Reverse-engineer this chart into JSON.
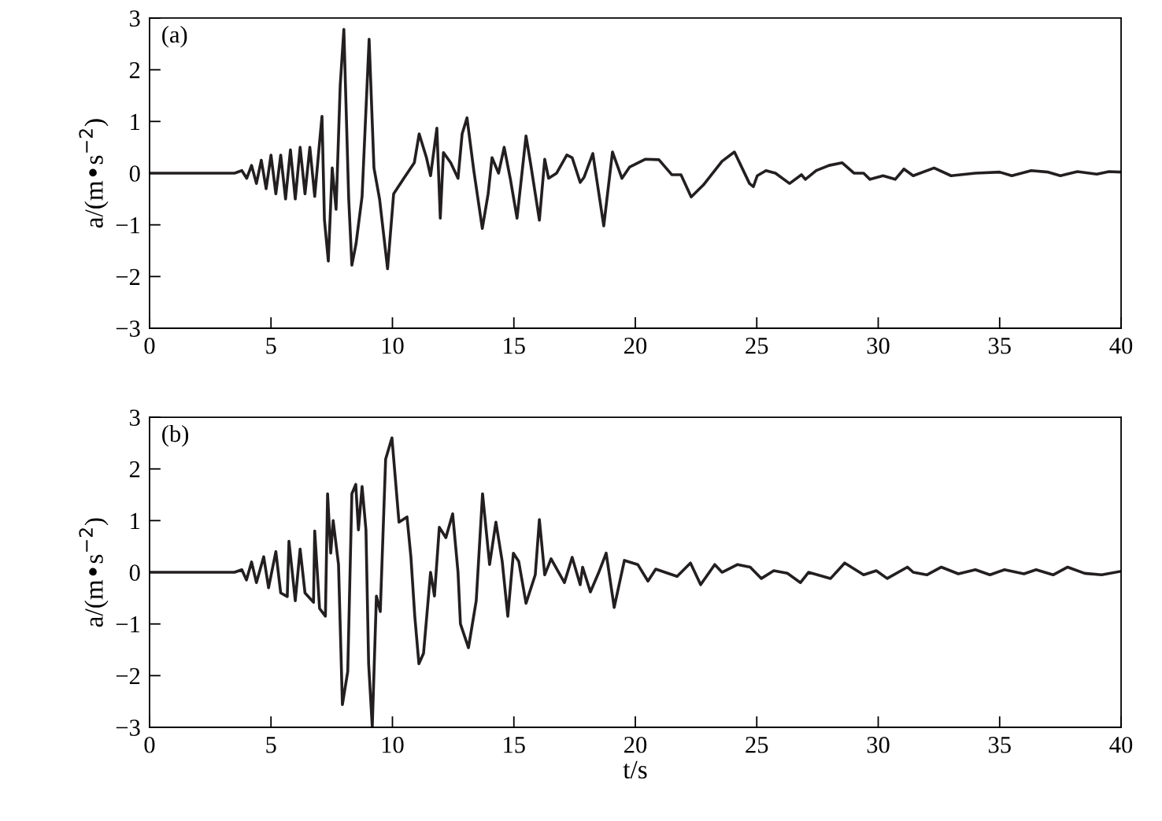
{
  "chart_data": [
    {
      "type": "line",
      "ylabel": "a/(m•s$^{−2}$)",
      "annotations": [
        "(a)"
      ],
      "xlim": [
        0,
        40
      ],
      "xticks": [
        0,
        5,
        10,
        15,
        20,
        25,
        30,
        35,
        40
      ],
      "ylim": [
        -3,
        3
      ],
      "yticks": [
        -3,
        -2,
        -1,
        0,
        1,
        2,
        3
      ],
      "grid": false,
      "marker": "none",
      "line_style": "solid",
      "series": [
        {
          "color": "#231f20",
          "x": [
            0,
            3.5,
            3.8,
            4.0,
            4.2,
            4.4,
            4.6,
            4.8,
            5.0,
            5.2,
            5.4,
            5.6,
            5.8,
            6.0,
            6.2,
            6.4,
            6.6,
            6.8,
            7.0,
            7.1,
            7.2,
            7.36,
            7.52,
            7.68,
            7.85,
            8.0,
            8.2,
            8.33,
            8.5,
            8.75,
            9.04,
            9.24,
            9.47,
            9.8,
            10.05,
            10.47,
            10.9,
            11.1,
            11.4,
            11.57,
            11.83,
            11.97,
            12.1,
            12.4,
            12.7,
            12.87,
            13.07,
            13.35,
            13.7,
            13.94,
            14.1,
            14.37,
            14.6,
            14.85,
            15.13,
            15.5,
            15.7,
            16.05,
            16.27,
            16.43,
            16.76,
            17.18,
            17.4,
            17.73,
            17.89,
            18.25,
            18.7,
            19.06,
            19.45,
            19.77,
            20.42,
            20.97,
            21.5,
            21.88,
            22.3,
            22.8,
            23.57,
            24.08,
            24.7,
            24.86,
            25.02,
            25.38,
            25.77,
            26.35,
            26.84,
            27.0,
            27.45,
            27.98,
            28.52,
            29.0,
            29.4,
            29.66,
            30.2,
            30.7,
            31.06,
            31.44,
            32.3,
            33.0,
            34.0,
            35.0,
            35.5,
            36.3,
            37.0,
            37.5,
            38.2,
            39.0,
            39.5,
            40.0
          ],
          "values": [
            0,
            0,
            0.05,
            -0.1,
            0.15,
            -0.2,
            0.25,
            -0.3,
            0.35,
            -0.4,
            0.35,
            -0.5,
            0.45,
            -0.5,
            0.5,
            -0.4,
            0.5,
            -0.45,
            0.6,
            1.1,
            -0.9,
            -1.7,
            0.1,
            -0.7,
            1.7,
            2.78,
            -0.5,
            -1.78,
            -1.37,
            -0.45,
            2.59,
            0.1,
            -0.5,
            -1.85,
            -0.4,
            -0.1,
            0.2,
            0.76,
            0.3,
            -0.05,
            0.87,
            -0.87,
            0.4,
            0.2,
            -0.1,
            0.76,
            1.07,
            0.05,
            -1.07,
            -0.4,
            0.3,
            0.0,
            0.5,
            -0.1,
            -0.87,
            0.72,
            0.15,
            -0.91,
            0.27,
            -0.1,
            0.0,
            0.35,
            0.3,
            -0.18,
            -0.08,
            0.38,
            -1.02,
            0.41,
            -0.1,
            0.12,
            0.27,
            0.26,
            -0.03,
            -0.03,
            -0.46,
            -0.23,
            0.23,
            0.41,
            -0.2,
            -0.26,
            -0.05,
            0.05,
            0.0,
            -0.2,
            -0.03,
            -0.12,
            0.05,
            0.15,
            0.2,
            0.0,
            0.0,
            -0.12,
            -0.05,
            -0.12,
            0.08,
            -0.05,
            0.1,
            -0.05,
            0.0,
            0.02,
            -0.05,
            0.05,
            0.02,
            -0.05,
            0.03,
            -0.02,
            0.03,
            0.02
          ]
        }
      ]
    },
    {
      "type": "line",
      "xlabel": "t/s",
      "ylabel": "a/(m•s$^{−2}$)",
      "annotations": [
        "(b)"
      ],
      "xlim": [
        0,
        40
      ],
      "xticks": [
        0,
        5,
        10,
        15,
        20,
        25,
        30,
        35,
        40
      ],
      "ylim": [
        -3,
        3
      ],
      "yticks": [
        -3,
        -2,
        -1,
        0,
        1,
        2,
        3
      ],
      "grid": false,
      "marker": "none",
      "line_style": "solid",
      "series": [
        {
          "color": "#231f20",
          "x": [
            0,
            3.5,
            3.8,
            3.99,
            4.2,
            4.4,
            4.7,
            4.9,
            5.2,
            5.4,
            5.67,
            5.74,
            6.0,
            6.2,
            6.4,
            6.75,
            6.8,
            7.0,
            7.24,
            7.33,
            7.46,
            7.56,
            7.78,
            7.94,
            8.16,
            8.33,
            8.49,
            8.6,
            8.75,
            8.91,
            9.02,
            9.17,
            9.34,
            9.5,
            9.72,
            9.98,
            10.27,
            10.6,
            10.76,
            10.92,
            11.09,
            11.28,
            11.57,
            11.73,
            11.93,
            12.2,
            12.48,
            12.7,
            12.8,
            13.13,
            13.45,
            13.71,
            14.0,
            14.26,
            14.52,
            14.75,
            14.98,
            15.2,
            15.5,
            15.88,
            16.05,
            16.27,
            16.53,
            17.08,
            17.4,
            17.73,
            17.83,
            18.15,
            18.48,
            18.8,
            19.13,
            19.55,
            20.1,
            20.52,
            20.84,
            21.72,
            22.27,
            22.69,
            23.27,
            23.57,
            24.21,
            24.73,
            25.19,
            25.7,
            26.26,
            26.8,
            27.13,
            28.04,
            28.62,
            29.4,
            29.92,
            30.37,
            31.2,
            31.44,
            32.0,
            32.6,
            33.3,
            34.0,
            34.6,
            35.2,
            36.0,
            36.5,
            37.2,
            37.8,
            38.5,
            39.2,
            40.0
          ],
          "values": [
            0,
            0,
            0.05,
            -0.15,
            0.2,
            -0.2,
            0.3,
            -0.3,
            0.4,
            -0.4,
            -0.47,
            0.6,
            -0.55,
            0.45,
            -0.4,
            -0.58,
            0.8,
            -0.7,
            -0.85,
            1.52,
            0.37,
            1.0,
            0.15,
            -2.56,
            -1.92,
            1.52,
            1.7,
            0.82,
            1.66,
            0.82,
            -1.77,
            -2.99,
            -0.46,
            -0.76,
            2.19,
            2.6,
            0.97,
            1.07,
            0.3,
            -0.85,
            -1.77,
            -1.57,
            0.0,
            -0.46,
            0.87,
            0.67,
            1.13,
            0.0,
            -1.0,
            -1.46,
            -0.55,
            1.52,
            0.15,
            0.97,
            0.21,
            -0.85,
            0.37,
            0.21,
            -0.6,
            -0.05,
            1.02,
            -0.05,
            0.26,
            -0.2,
            0.29,
            -0.24,
            0.1,
            -0.38,
            -0.02,
            0.37,
            -0.68,
            0.23,
            0.15,
            -0.17,
            0.06,
            -0.08,
            0.18,
            -0.24,
            0.15,
            0.0,
            0.15,
            0.1,
            -0.12,
            0.03,
            -0.02,
            -0.2,
            0.0,
            -0.12,
            0.18,
            -0.05,
            0.03,
            -0.12,
            0.1,
            0.0,
            -0.05,
            0.1,
            -0.03,
            0.05,
            -0.05,
            0.05,
            -0.03,
            0.05,
            -0.05,
            0.1,
            -0.02,
            -0.05,
            0.02
          ]
        }
      ]
    }
  ]
}
